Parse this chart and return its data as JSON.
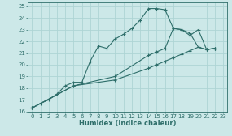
{
  "xlabel": "Humidex (Indice chaleur)",
  "bg_color": "#cce8e8",
  "grid_color": "#b8d8d8",
  "line_color": "#2e6e6a",
  "xlim": [
    -0.5,
    23.5
  ],
  "ylim": [
    16,
    25.3
  ],
  "xticks": [
    0,
    1,
    2,
    3,
    4,
    5,
    6,
    7,
    8,
    9,
    10,
    11,
    12,
    13,
    14,
    15,
    16,
    17,
    18,
    19,
    20,
    21,
    22,
    23
  ],
  "yticks": [
    16,
    17,
    18,
    19,
    20,
    21,
    22,
    23,
    24,
    25
  ],
  "line1_x": [
    0,
    1,
    2,
    3,
    4,
    5,
    6,
    7,
    8,
    9,
    10,
    11,
    12,
    13,
    14,
    15,
    16,
    17,
    18,
    19,
    20,
    21,
    22
  ],
  "line1_y": [
    16.3,
    16.7,
    17.0,
    17.5,
    18.2,
    18.5,
    18.5,
    20.3,
    21.6,
    21.4,
    22.2,
    22.6,
    23.1,
    23.8,
    24.8,
    24.8,
    24.7,
    23.1,
    23.0,
    22.7,
    21.5,
    21.3,
    21.4
  ],
  "line2_x": [
    0,
    5,
    10,
    14,
    15,
    16,
    17,
    18,
    19,
    20,
    21,
    22
  ],
  "line2_y": [
    16.3,
    18.2,
    19.0,
    20.8,
    21.1,
    21.4,
    23.1,
    23.0,
    22.5,
    23.0,
    21.3,
    21.4
  ],
  "line3_x": [
    0,
    5,
    10,
    14,
    15,
    16,
    17,
    18,
    19,
    20,
    21,
    22
  ],
  "line3_y": [
    16.3,
    18.2,
    18.7,
    19.7,
    20.0,
    20.3,
    20.6,
    20.9,
    21.2,
    21.5,
    21.3,
    21.4
  ]
}
